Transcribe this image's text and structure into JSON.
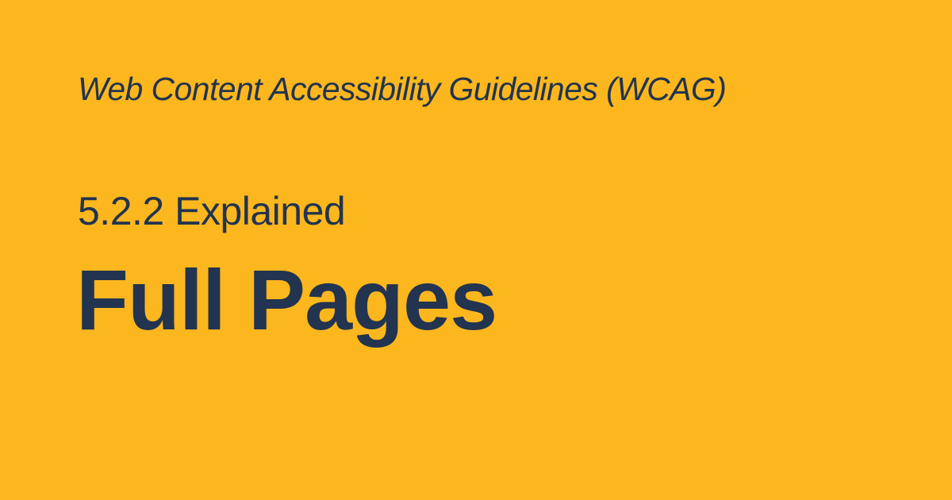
{
  "colors": {
    "background": "#FDB71E",
    "text": "#22344F"
  },
  "header": {
    "kicker": "Web Content Accessibility Guidelines (WCAG)"
  },
  "main": {
    "subtitle": "5.2.2 Explained",
    "title": "Full Pages"
  }
}
